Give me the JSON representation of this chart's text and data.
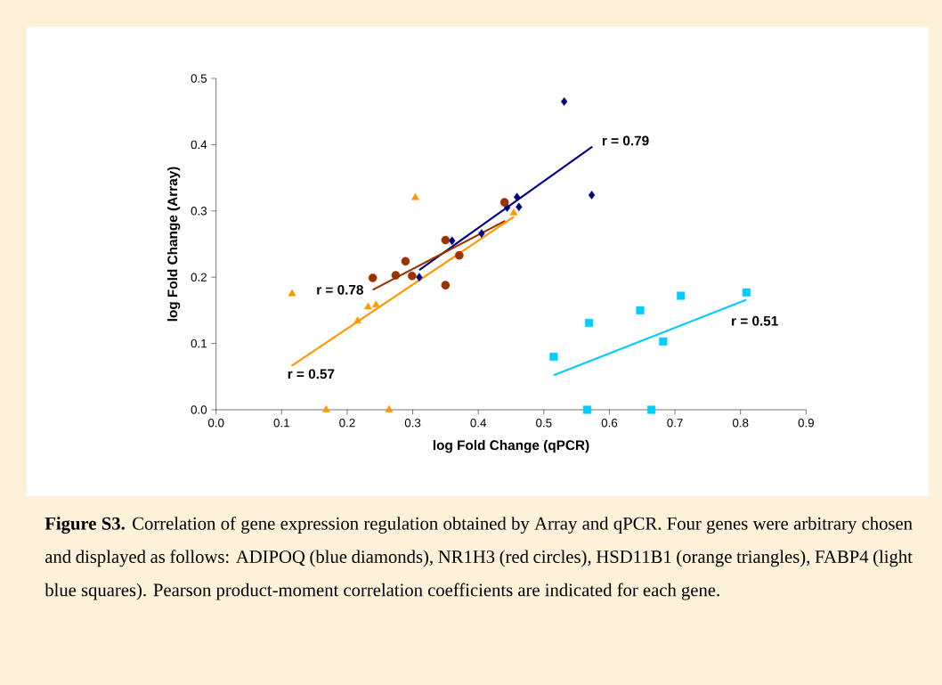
{
  "chart_data": {
    "type": "scatter",
    "xlabel": "log Fold Change (qPCR)",
    "ylabel": "log Fold Change (Array)",
    "xlim": [
      0,
      0.9
    ],
    "ylim": [
      0,
      0.5
    ],
    "xticks": [
      {
        "value": 0,
        "label": "0.0"
      },
      0.1,
      0.2,
      0.3,
      0.4,
      0.5,
      0.6,
      0.7,
      0.8,
      0.9
    ],
    "yticks": [
      {
        "value": 0,
        "label": "0.0"
      },
      0.1,
      0.2,
      0.3,
      0.4,
      0.5
    ],
    "grid": false,
    "series": [
      {
        "marker": "diamond",
        "color": "#000080",
        "x": [
          0.31,
          0.36,
          0.405,
          0.444,
          0.459,
          0.462,
          0.531,
          0.573
        ],
        "values": [
          0.2,
          0.255,
          0.266,
          0.305,
          0.321,
          0.306,
          0.465,
          0.324
        ]
      },
      {
        "marker": "circle",
        "color": "#993300",
        "x": [
          0.239,
          0.274,
          0.289,
          0.299,
          0.35,
          0.35,
          0.371,
          0.44
        ],
        "values": [
          0.199,
          0.203,
          0.224,
          0.202,
          0.256,
          0.188,
          0.233,
          0.313
        ]
      },
      {
        "marker": "triangle",
        "color": "#ff9900",
        "x": [
          0.116,
          0.168,
          0.216,
          0.232,
          0.244,
          0.264,
          0.304,
          0.454
        ],
        "values": [
          0.175,
          0,
          0.134,
          0.155,
          0.158,
          0,
          0.32,
          0.297
        ]
      },
      {
        "marker": "square",
        "color": "#00ccff",
        "x": [
          0.515,
          0.566,
          0.569,
          0.647,
          0.664,
          0.682,
          0.709,
          0.809
        ],
        "values": [
          0.08,
          0,
          0.131,
          0.15,
          0,
          0.103,
          0.172,
          0.177
        ]
      },
      {
        "type": "line",
        "line_style": "solid",
        "color": "#000080",
        "x": [
          0.31,
          0.574
        ],
        "values": [
          0.211,
          0.397
        ]
      },
      {
        "type": "line",
        "line_style": "solid",
        "color": "#993300",
        "x": [
          0.239,
          0.441
        ],
        "values": [
          0.181,
          0.285
        ]
      },
      {
        "type": "line",
        "line_style": "solid",
        "color": "#ff9900",
        "x": [
          0.115,
          0.454
        ],
        "values": [
          0.066,
          0.291
        ]
      },
      {
        "type": "line",
        "line_style": "solid",
        "color": "#00ccff",
        "x": [
          0.515,
          0.809
        ],
        "values": [
          0.052,
          0.166
        ]
      }
    ],
    "annotations": [
      "r = 0.79",
      "r = 0.78",
      "r = 0.57",
      "r = 0.51",
      "**Figure S3.** Correlation of gene expression regulation obtained by Array and qPCR. Four genes were arbitrary chosen and displayed as follows: ADIPOQ (blue diamonds), NR1H3 (red circles), HSD11B1 (orange triangles), FABP4 (light blue squares). Pearson product-moment correlation coefficients are indicated for each gene."
    ]
  }
}
